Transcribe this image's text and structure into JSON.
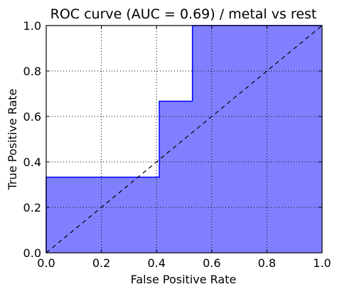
{
  "chart_data": {
    "type": "area",
    "title": "ROC curve (AUC = 0.69) / metal vs rest",
    "xlabel": "False Positive Rate",
    "ylabel": "True Positive Rate",
    "xlim": [
      0.0,
      1.0
    ],
    "ylim": [
      0.0,
      1.0
    ],
    "xticks": [
      "0.0",
      "0.2",
      "0.4",
      "0.6",
      "0.8",
      "1.0"
    ],
    "yticks": [
      "0.0",
      "0.2",
      "0.4",
      "0.6",
      "0.8",
      "1.0"
    ],
    "grid": true,
    "series": [
      {
        "x": [
          0.0,
          0.0,
          0.41,
          0.41,
          0.53,
          0.53,
          1.0
        ],
        "y": [
          0.0,
          0.333,
          0.333,
          0.667,
          0.667,
          1.0,
          1.0
        ],
        "step": true,
        "fill": true
      }
    ],
    "diagonal": {
      "x": [
        0.0,
        1.0
      ],
      "y": [
        0.0,
        1.0
      ],
      "style": "dashed"
    },
    "colors": {
      "fill": "#8080ff",
      "line": "#0000ff",
      "diagonal": "#000000"
    }
  }
}
